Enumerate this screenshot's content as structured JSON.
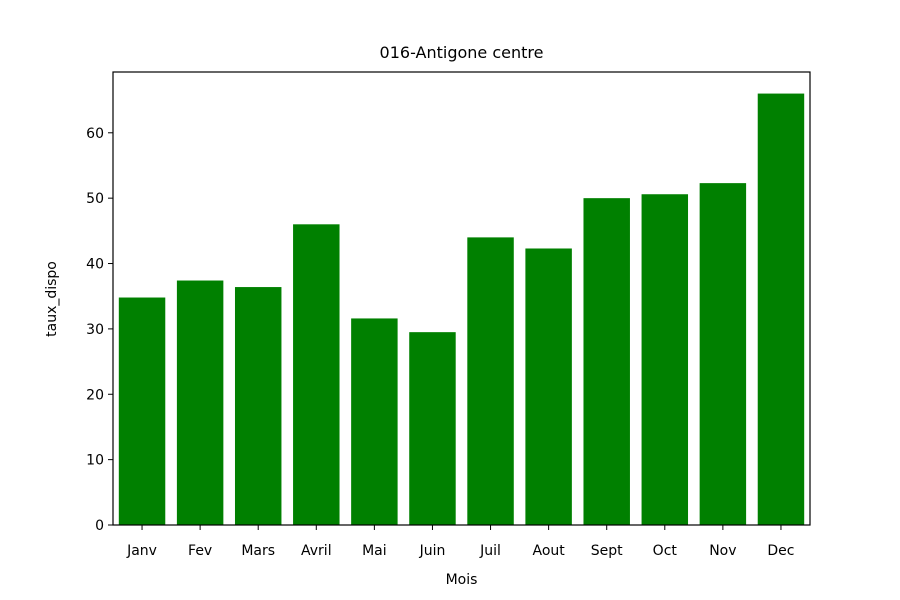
{
  "chart_data": {
    "type": "bar",
    "title": "016-Antigone centre",
    "xlabel": "Mois",
    "ylabel": "taux_dispo",
    "categories": [
      "Janv",
      "Fev",
      "Mars",
      "Avril",
      "Mai",
      "Juin",
      "Juil",
      "Aout",
      "Sept",
      "Oct",
      "Nov",
      "Dec"
    ],
    "values": [
      34.8,
      37.4,
      36.4,
      46.0,
      31.6,
      29.5,
      44.0,
      42.3,
      50.0,
      50.6,
      52.3,
      66.0
    ],
    "ylim": [
      0,
      69.3
    ],
    "yticks": [
      "0",
      "10",
      "20",
      "30",
      "40",
      "50",
      "60"
    ],
    "bar_color": "#008000",
    "grid": false
  }
}
